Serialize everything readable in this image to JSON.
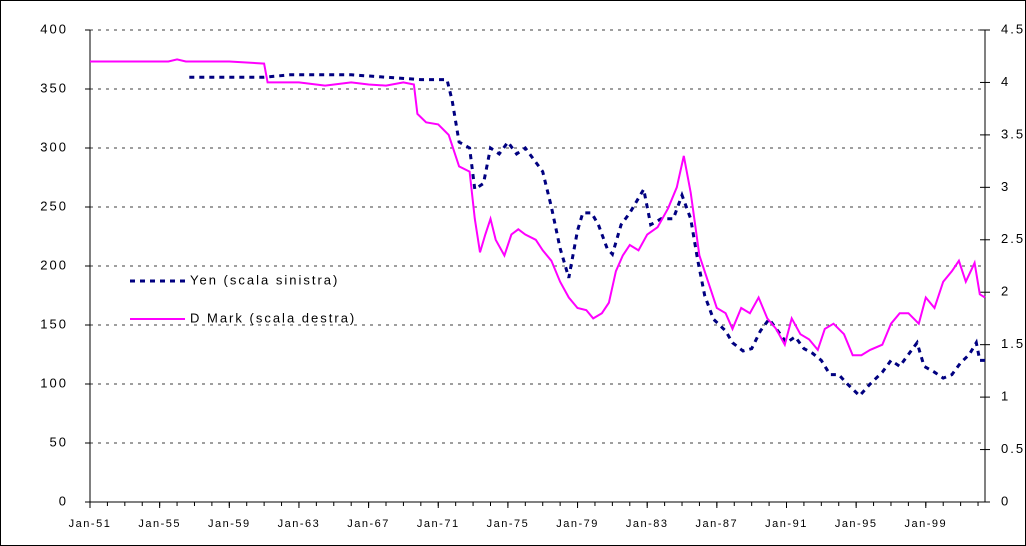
{
  "chart_data": {
    "type": "line",
    "xlim": [
      1951,
      2002.4
    ],
    "xticks": [
      {
        "value": 1951,
        "label": "Jan-51"
      },
      {
        "value": 1955,
        "label": "Jan-55"
      },
      {
        "value": 1959,
        "label": "Jan-59"
      },
      {
        "value": 1963,
        "label": "Jan-63"
      },
      {
        "value": 1967,
        "label": "Jan-67"
      },
      {
        "value": 1971,
        "label": "Jan-71"
      },
      {
        "value": 1975,
        "label": "Jan-75"
      },
      {
        "value": 1979,
        "label": "Jan-79"
      },
      {
        "value": 1983,
        "label": "Jan-83"
      },
      {
        "value": 1987,
        "label": "Jan-87"
      },
      {
        "value": 1991,
        "label": "Jan-91"
      },
      {
        "value": 1995,
        "label": "Jan-95"
      },
      {
        "value": 1999,
        "label": "Jan-99"
      }
    ],
    "ylim": [
      0,
      400
    ],
    "yticks": [
      0,
      50,
      100,
      150,
      200,
      250,
      300,
      350,
      400
    ],
    "y2lim": [
      0,
      4.5
    ],
    "y2ticks": [
      0,
      0.5,
      1,
      1.5,
      2,
      2.5,
      3,
      3.5,
      4,
      4.5
    ],
    "grid": true,
    "legend": "left",
    "series": [
      {
        "name": "Yen (scala sinistra)",
        "color": "#000080",
        "axis": "y",
        "dashed": true,
        "x": [
          1956.7,
          1960,
          1961,
          1962.5,
          1964,
          1966,
          1968,
          1970,
          1971.5,
          1971.8,
          1972.2,
          1972.8,
          1973.1,
          1973.6,
          1974,
          1974.5,
          1975,
          1975.5,
          1976,
          1976.5,
          1977,
          1977.5,
          1978,
          1978.5,
          1979,
          1979.3,
          1979.8,
          1980.2,
          1980.7,
          1981,
          1981.5,
          1982,
          1982.8,
          1983.2,
          1983.8,
          1984.5,
          1985,
          1985.5,
          1985.9,
          1986.3,
          1986.8,
          1987.5,
          1987.9,
          1988.5,
          1989,
          1989.5,
          1990,
          1990.5,
          1991,
          1991.5,
          1992,
          1992.5,
          1993,
          1993.5,
          1994,
          1994.5,
          1995.2,
          1995.8,
          1996.5,
          1997,
          1997.5,
          1998,
          1998.5,
          1998.9,
          1999.5,
          2000,
          2000.5,
          2001,
          2001.5,
          2001.9,
          2002.1,
          2002.4
        ],
        "values": [
          360,
          360,
          360,
          362,
          362,
          362,
          360,
          358,
          358,
          340,
          305,
          300,
          265,
          270,
          300,
          295,
          305,
          295,
          300,
          290,
          280,
          250,
          215,
          190,
          230,
          245,
          245,
          235,
          215,
          210,
          235,
          245,
          265,
          235,
          240,
          240,
          260,
          240,
          205,
          175,
          155,
          145,
          135,
          128,
          130,
          145,
          155,
          145,
          135,
          140,
          130,
          126,
          120,
          108,
          108,
          100,
          90,
          100,
          110,
          120,
          115,
          125,
          135,
          115,
          110,
          105,
          108,
          118,
          125,
          135,
          120,
          120
        ]
      },
      {
        "name": "D Mark (scala destra)",
        "color": "#ff00ff",
        "axis": "y2",
        "dashed": false,
        "x": [
          1951,
          1955.5,
          1956,
          1956.5,
          1959,
          1961,
          1961.2,
          1963,
          1964.5,
          1966,
          1967,
          1968,
          1969,
          1969.6,
          1969.8,
          1970.3,
          1971,
          1971.6,
          1972.2,
          1972.8,
          1973.1,
          1973.4,
          1973.7,
          1974,
          1974.3,
          1974.8,
          1975.2,
          1975.6,
          1976,
          1976.6,
          1977,
          1977.5,
          1978,
          1978.5,
          1979,
          1979.5,
          1979.9,
          1980.4,
          1980.8,
          1981.2,
          1981.6,
          1982,
          1982.5,
          1983,
          1983.6,
          1984.2,
          1984.7,
          1985.1,
          1985.5,
          1986,
          1986.5,
          1987,
          1987.5,
          1987.9,
          1988.4,
          1988.9,
          1989.4,
          1989.9,
          1990.4,
          1990.9,
          1991.3,
          1991.8,
          1992.3,
          1992.8,
          1993.2,
          1993.7,
          1994.3,
          1994.8,
          1995.3,
          1995.8,
          1996.5,
          1997,
          1997.5,
          1998,
          1998.6,
          1999,
          1999.5,
          2000,
          2000.5,
          2000.9,
          2001.3,
          2001.8,
          2002.1,
          2002.4
        ],
        "values": [
          4.2,
          4.2,
          4.22,
          4.2,
          4.2,
          4.18,
          4.0,
          4.0,
          3.97,
          4.0,
          3.98,
          3.97,
          4.0,
          3.98,
          3.7,
          3.62,
          3.6,
          3.5,
          3.2,
          3.15,
          2.7,
          2.38,
          2.55,
          2.7,
          2.5,
          2.35,
          2.55,
          2.6,
          2.55,
          2.5,
          2.4,
          2.3,
          2.1,
          1.95,
          1.85,
          1.83,
          1.75,
          1.8,
          1.9,
          2.2,
          2.35,
          2.45,
          2.4,
          2.55,
          2.62,
          2.8,
          3.0,
          3.3,
          2.95,
          2.35,
          2.1,
          1.85,
          1.8,
          1.65,
          1.85,
          1.8,
          1.95,
          1.75,
          1.65,
          1.5,
          1.75,
          1.6,
          1.55,
          1.45,
          1.65,
          1.7,
          1.6,
          1.4,
          1.4,
          1.45,
          1.5,
          1.7,
          1.8,
          1.8,
          1.7,
          1.95,
          1.85,
          2.1,
          2.2,
          2.3,
          2.1,
          2.28,
          1.98,
          1.95
        ]
      }
    ]
  }
}
